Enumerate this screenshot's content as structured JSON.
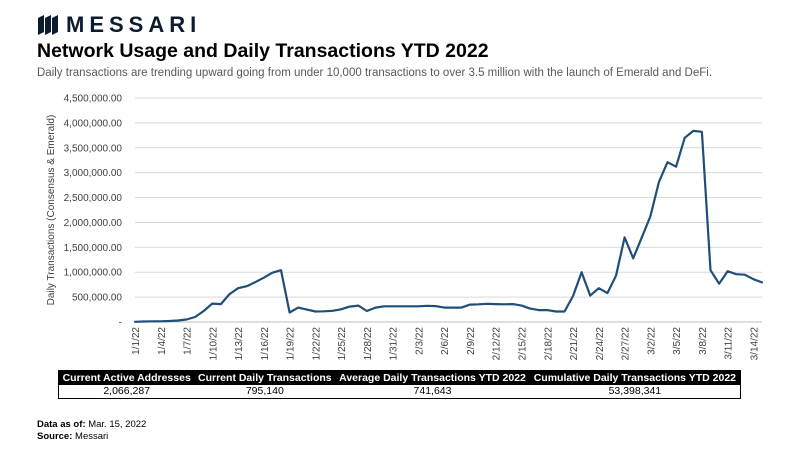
{
  "brand": {
    "name": "MESSARI",
    "color": "#0d1b2e"
  },
  "title": "Network Usage and Daily Transactions YTD 2022",
  "subtitle": "Daily transactions are trending upward going from under 10,000 transactions to over 3.5 million with the launch of Emerald and DeFi.",
  "chart_data": {
    "type": "line",
    "ylabel": "Daily Transactions (Consensus & Emerald)",
    "xlabel": "",
    "ylim": [
      0,
      4500000
    ],
    "yticks": [
      0,
      500000,
      1000000,
      1500000,
      2000000,
      2500000,
      3000000,
      3500000,
      4000000,
      4500000
    ],
    "ytick_labels": [
      "-",
      "500,000.00",
      "1,000,000.00",
      "1,500,000.00",
      "2,000,000.00",
      "2,500,000.00",
      "3,000,000.00",
      "3,500,000.00",
      "4,000,000.00",
      "4,500,000.00"
    ],
    "xtick_labels": [
      "1/1/22",
      "1/4/22",
      "1/7/22",
      "1/10/22",
      "1/13/22",
      "1/16/22",
      "1/19/22",
      "1/22/22",
      "1/25/22",
      "1/28/22",
      "1/31/22",
      "2/3/22",
      "2/6/22",
      "2/9/22",
      "2/12/22",
      "2/15/22",
      "2/18/22",
      "2/21/22",
      "2/24/22",
      "2/27/22",
      "3/2/22",
      "3/5/22",
      "3/8/22",
      "3/11/22",
      "3/14/22"
    ],
    "line_color": "#1f4e79",
    "grid": true,
    "series": [
      {
        "name": "Daily Transactions",
        "x_start": "1/1/22",
        "values": [
          5000,
          10000,
          15000,
          15000,
          20000,
          30000,
          50000,
          100000,
          220000,
          370000,
          360000,
          560000,
          680000,
          720000,
          800000,
          890000,
          990000,
          1040000,
          190000,
          290000,
          250000,
          210000,
          215000,
          225000,
          255000,
          310000,
          330000,
          220000,
          290000,
          315000,
          315000,
          315000,
          315000,
          315000,
          325000,
          320000,
          290000,
          290000,
          290000,
          350000,
          355000,
          365000,
          360000,
          355000,
          360000,
          330000,
          270000,
          240000,
          240000,
          210000,
          210000,
          520000,
          1000000,
          530000,
          680000,
          580000,
          930000,
          1700000,
          1280000,
          1700000,
          2120000,
          2810000,
          3210000,
          3120000,
          3700000,
          3840000,
          3820000,
          1040000,
          770000,
          1020000,
          960000,
          950000,
          860000,
          795140
        ]
      }
    ]
  },
  "stats_table": {
    "headers": [
      "Current Active Addresses",
      "Current Daily Transactions",
      "Average Daily Transactions YTD 2022",
      "Cumulative Daily Transactions YTD 2022"
    ],
    "values": [
      "2,066,287",
      "795,140",
      "741,643",
      "53,398,341"
    ]
  },
  "footer": {
    "data_as_of_label": "Data as of",
    "data_as_of_value": "Mar. 15, 2022",
    "source_label": "Source",
    "source_value": "Messari"
  }
}
